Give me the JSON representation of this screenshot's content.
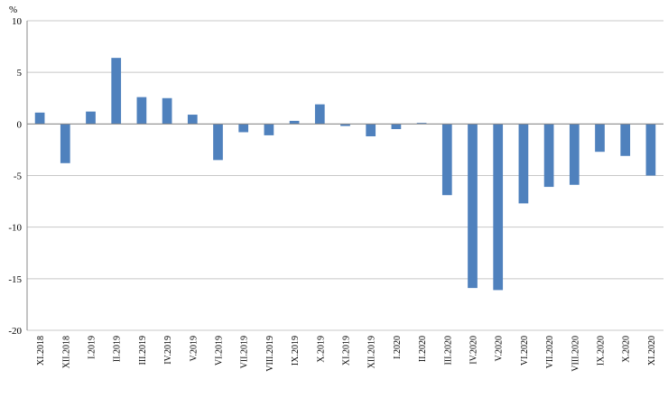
{
  "chart_data": {
    "type": "bar",
    "title": "",
    "xlabel": "",
    "ylabel": "",
    "y_unit": "%",
    "ylim": [
      -20,
      10
    ],
    "yticks": [
      10,
      5,
      0,
      -5,
      -10,
      -15,
      -20
    ],
    "grid": true,
    "legend": "none",
    "bar_color": "#4f81bd",
    "categories": [
      "XI.2018",
      "XII.2018",
      "I.2019",
      "II.2019",
      "III.2019",
      "IV.2019",
      "V.2019",
      "VI.2019",
      "VII.2019",
      "VIII.2019",
      "IX.2019",
      "X.2019",
      "XI.2019",
      "XII.2019",
      "I.2020",
      "II.2020",
      "III.2020",
      "IV.2020",
      "V.2020",
      "VI.2020",
      "VII.2020",
      "VIII.2020",
      "IX.2020",
      "X.2020",
      "XI.2020"
    ],
    "values": [
      1.1,
      -3.8,
      1.2,
      6.4,
      2.6,
      2.5,
      0.9,
      -3.5,
      -0.8,
      -1.1,
      0.3,
      1.9,
      -0.2,
      -1.2,
      -0.5,
      0.1,
      -6.9,
      -15.9,
      -16.1,
      -7.7,
      -6.1,
      -5.9,
      -2.7,
      -3.1,
      -5.0
    ]
  }
}
